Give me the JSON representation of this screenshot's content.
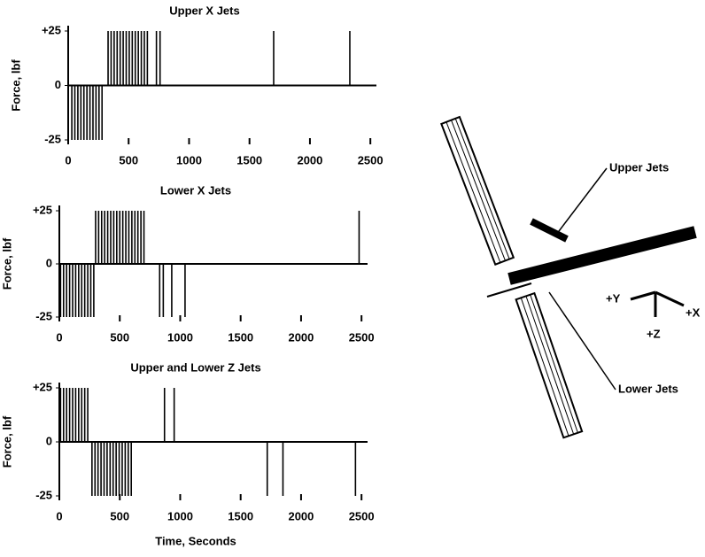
{
  "chart_data": [
    {
      "type": "bar",
      "title": "Upper X Jets",
      "ylabel": "Force, lbf",
      "color": "#000000",
      "x": [
        30,
        55,
        80,
        105,
        130,
        155,
        180,
        205,
        230,
        255,
        280,
        330,
        355,
        380,
        405,
        430,
        455,
        480,
        505,
        530,
        555,
        580,
        605,
        630,
        655,
        730,
        760,
        1700,
        2330
      ],
      "values": [
        -25,
        -25,
        -25,
        -25,
        -25,
        -25,
        -25,
        -25,
        -25,
        -25,
        -25,
        25,
        25,
        25,
        25,
        25,
        25,
        25,
        25,
        25,
        25,
        25,
        25,
        25,
        25,
        25,
        25,
        25,
        25
      ],
      "xlim": [
        0,
        2550
      ],
      "xticks": [
        0,
        500,
        1000,
        1500,
        2000,
        2500
      ],
      "ylim": [
        -25,
        25
      ],
      "yticks": [
        {
          "value": 25,
          "label": "+25"
        },
        0,
        -25
      ]
    },
    {
      "type": "bar",
      "title": "Lower X Jets",
      "ylabel": "Force, lbf",
      "color": "#000000",
      "x": [
        10,
        35,
        60,
        85,
        110,
        135,
        160,
        185,
        210,
        235,
        260,
        285,
        300,
        325,
        350,
        375,
        400,
        425,
        450,
        475,
        500,
        525,
        550,
        575,
        600,
        625,
        650,
        675,
        700,
        830,
        860,
        930,
        1040,
        2480
      ],
      "values": [
        -25,
        -25,
        -25,
        -25,
        -25,
        -25,
        -25,
        -25,
        -25,
        -25,
        -25,
        -25,
        25,
        25,
        25,
        25,
        25,
        25,
        25,
        25,
        25,
        25,
        25,
        25,
        25,
        25,
        25,
        25,
        25,
        -25,
        -25,
        -25,
        -25,
        25
      ],
      "xlim": [
        0,
        2550
      ],
      "xticks": [
        0,
        500,
        1000,
        1500,
        2000,
        2500
      ],
      "ylim": [
        -25,
        25
      ],
      "yticks": [
        {
          "value": 25,
          "label": "+25"
        },
        0,
        -25
      ]
    },
    {
      "type": "bar",
      "title": "Upper and Lower Z Jets",
      "ylabel": "Force, lbf",
      "xlabel": "Time, Seconds",
      "color": "#000000",
      "x": [
        10,
        35,
        60,
        85,
        110,
        135,
        160,
        185,
        210,
        235,
        270,
        295,
        320,
        345,
        370,
        395,
        420,
        445,
        470,
        495,
        520,
        545,
        570,
        595,
        870,
        950,
        1720,
        1850,
        2450
      ],
      "values": [
        25,
        25,
        25,
        25,
        25,
        25,
        25,
        25,
        25,
        25,
        -25,
        -25,
        -25,
        -25,
        -25,
        -25,
        -25,
        -25,
        -25,
        -25,
        -25,
        -25,
        -25,
        -25,
        25,
        25,
        -25,
        -25,
        -25
      ],
      "xlim": [
        0,
        2550
      ],
      "xticks": [
        0,
        500,
        1000,
        1500,
        2000,
        2500
      ],
      "ylim": [
        -25,
        25
      ],
      "yticks": [
        {
          "value": 25,
          "label": "+25"
        },
        0,
        -25
      ]
    }
  ],
  "diagram": {
    "upper_jets": "Upper Jets",
    "lower_jets": "Lower Jets",
    "axis_y": "+Y",
    "axis_x": "+X",
    "axis_z": "+Z"
  }
}
